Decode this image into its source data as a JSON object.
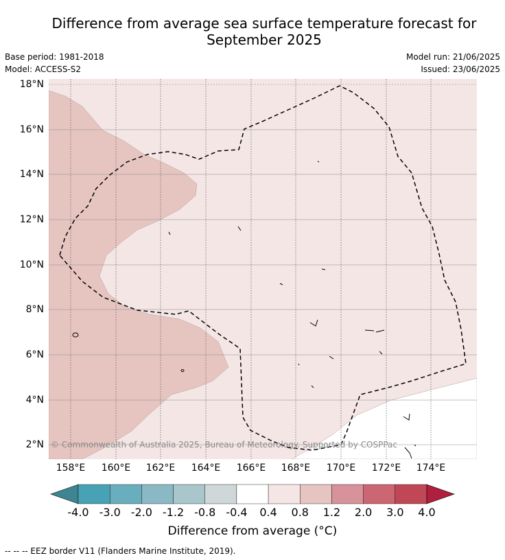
{
  "title_line1": "Difference from average sea surface temperature forecast for",
  "title_line2": "September 2025",
  "meta": {
    "base_period": "Base period: 1981-2018",
    "model": "Model: ACCESS-S2",
    "model_run": "Model run: 21/06/2025",
    "issued": "Issued: 23/06/2025"
  },
  "map": {
    "lat_labels": [
      "18°N",
      "16°N",
      "14°N",
      "12°N",
      "10°N",
      "8°N",
      "6°N",
      "4°N",
      "2°N"
    ],
    "lon_labels": [
      "158°E",
      "160°E",
      "162°E",
      "164°E",
      "166°E",
      "168°E",
      "170°E",
      "172°E",
      "174°E"
    ],
    "lon_range": [
      157,
      176
    ],
    "lat_range": [
      1.4,
      18.2
    ],
    "fill_colors": {
      "0.4_to_0.8": "#f4e6e5",
      "0.8_to_1.2": "#e6c5c1",
      "neutral": "#ffffff"
    },
    "watermark": "© Commonwealth of Australia 2025, Bureau of Meteorology. Supported by COSPPac"
  },
  "colorbar": {
    "labels": [
      "-4.0",
      "-3.0",
      "-2.0",
      "-1.2",
      "-0.8",
      "-0.4",
      "0.4",
      "0.8",
      "1.2",
      "2.0",
      "3.0",
      "4.0"
    ],
    "colors": [
      "#48a2b5",
      "#69aebd",
      "#8ab9c5",
      "#a8c6cb",
      "#d0d7d9",
      "#ffffff",
      "#f4e6e5",
      "#e6c5c1",
      "#d8929a",
      "#cb6672",
      "#c04756"
    ],
    "under_color": "#3e8591",
    "over_color": "#b0203e",
    "title": "Difference from average (°C)"
  },
  "footer": "--  --  -- EEZ border V11 (Flanders Marine Institute, 2019)."
}
